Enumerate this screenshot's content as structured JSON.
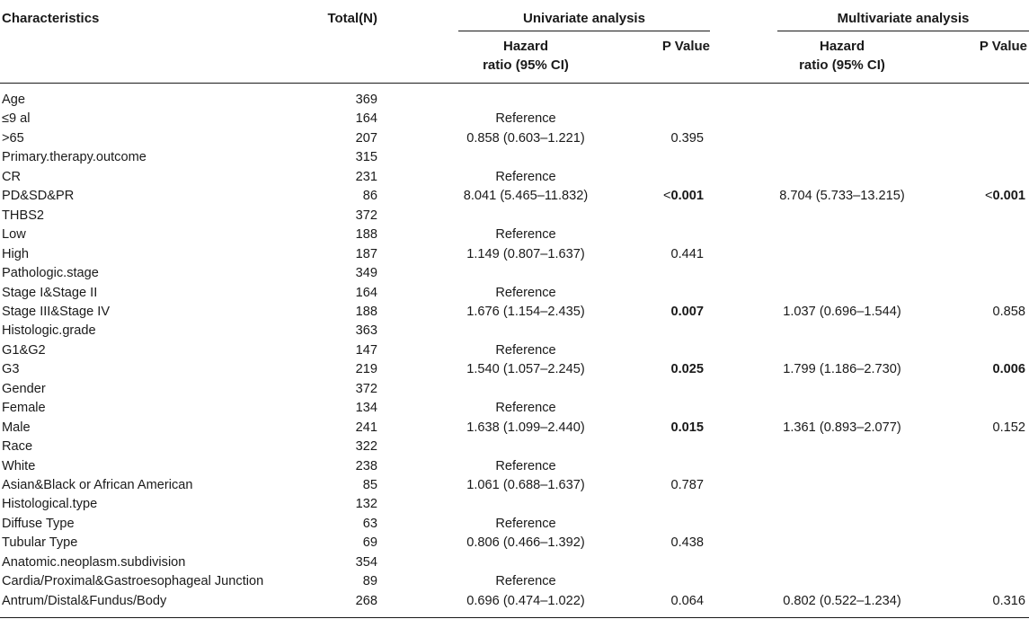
{
  "headers": {
    "characteristics": "Characteristics",
    "total": "Total(N)",
    "univariate": "Univariate analysis",
    "multivariate": "Multivariate analysis",
    "hazard_line1": "Hazard",
    "hazard_line2": "ratio (95% CI)",
    "p_value": "P Value"
  },
  "rows": [
    {
      "char": "Age",
      "total": "369",
      "uhr": "",
      "up": "",
      "up_lt": "",
      "up_bold": false,
      "mhr": "",
      "mp": "",
      "mp_lt": "",
      "mp_bold": false
    },
    {
      "char": "≤9 al",
      "total": "164",
      "uhr": "Reference",
      "up": "",
      "up_lt": "",
      "up_bold": false,
      "mhr": "",
      "mp": "",
      "mp_lt": "",
      "mp_bold": false
    },
    {
      "char": ">65",
      "total": "207",
      "uhr": "0.858 (0.603–1.221)",
      "up": "0.395",
      "up_lt": "",
      "up_bold": false,
      "mhr": "",
      "mp": "",
      "mp_lt": "",
      "mp_bold": false
    },
    {
      "char": "Primary.therapy.outcome",
      "total": "315",
      "uhr": "",
      "up": "",
      "up_lt": "",
      "up_bold": false,
      "mhr": "",
      "mp": "",
      "mp_lt": "",
      "mp_bold": false
    },
    {
      "char": "CR",
      "total": "231",
      "uhr": "Reference",
      "up": "",
      "up_lt": "",
      "up_bold": false,
      "mhr": "",
      "mp": "",
      "mp_lt": "",
      "mp_bold": false
    },
    {
      "char": "PD&SD&PR",
      "total": "86",
      "uhr": "8.041 (5.465–11.832)",
      "up": "0.001",
      "up_lt": "<",
      "up_bold": true,
      "mhr": "8.704 (5.733–13.215)",
      "mp": "0.001",
      "mp_lt": "<",
      "mp_bold": true
    },
    {
      "char": "THBS2",
      "total": "372",
      "uhr": "",
      "up": "",
      "up_lt": "",
      "up_bold": false,
      "mhr": "",
      "mp": "",
      "mp_lt": "",
      "mp_bold": false
    },
    {
      "char": "Low",
      "total": "188",
      "uhr": "Reference",
      "up": "",
      "up_lt": "",
      "up_bold": false,
      "mhr": "",
      "mp": "",
      "mp_lt": "",
      "mp_bold": false
    },
    {
      "char": "High",
      "total": "187",
      "uhr": "1.149 (0.807–1.637)",
      "up": "0.441",
      "up_lt": "",
      "up_bold": false,
      "mhr": "",
      "mp": "",
      "mp_lt": "",
      "mp_bold": false
    },
    {
      "char": "Pathologic.stage",
      "total": "349",
      "uhr": "",
      "up": "",
      "up_lt": "",
      "up_bold": false,
      "mhr": "",
      "mp": "",
      "mp_lt": "",
      "mp_bold": false
    },
    {
      "char": "Stage I&Stage II",
      "total": "164",
      "uhr": "Reference",
      "up": "",
      "up_lt": "",
      "up_bold": false,
      "mhr": "",
      "mp": "",
      "mp_lt": "",
      "mp_bold": false
    },
    {
      "char": "Stage III&Stage IV",
      "total": "188",
      "uhr": "1.676 (1.154–2.435)",
      "up": "0.007",
      "up_lt": "",
      "up_bold": true,
      "mhr": "1.037 (0.696–1.544)",
      "mp": "0.858",
      "mp_lt": "",
      "mp_bold": false
    },
    {
      "char": "Histologic.grade",
      "total": "363",
      "uhr": "",
      "up": "",
      "up_lt": "",
      "up_bold": false,
      "mhr": "",
      "mp": "",
      "mp_lt": "",
      "mp_bold": false
    },
    {
      "char": "G1&G2",
      "total": "147",
      "uhr": "Reference",
      "up": "",
      "up_lt": "",
      "up_bold": false,
      "mhr": "",
      "mp": "",
      "mp_lt": "",
      "mp_bold": false
    },
    {
      "char": "G3",
      "total": "219",
      "uhr": "1.540 (1.057–2.245)",
      "up": "0.025",
      "up_lt": "",
      "up_bold": true,
      "mhr": "1.799 (1.186–2.730)",
      "mp": "0.006",
      "mp_lt": "",
      "mp_bold": true
    },
    {
      "char": "Gender",
      "total": "372",
      "uhr": "",
      "up": "",
      "up_lt": "",
      "up_bold": false,
      "mhr": "",
      "mp": "",
      "mp_lt": "",
      "mp_bold": false
    },
    {
      "char": "Female",
      "total": "134",
      "uhr": "Reference",
      "up": "",
      "up_lt": "",
      "up_bold": false,
      "mhr": "",
      "mp": "",
      "mp_lt": "",
      "mp_bold": false
    },
    {
      "char": "Male",
      "total": "241",
      "uhr": "1.638 (1.099–2.440)",
      "up": "0.015",
      "up_lt": "",
      "up_bold": true,
      "mhr": "1.361 (0.893–2.077)",
      "mp": "0.152",
      "mp_lt": "",
      "mp_bold": false
    },
    {
      "char": "Race",
      "total": "322",
      "uhr": "",
      "up": "",
      "up_lt": "",
      "up_bold": false,
      "mhr": "",
      "mp": "",
      "mp_lt": "",
      "mp_bold": false
    },
    {
      "char": "White",
      "total": "238",
      "uhr": "Reference",
      "up": "",
      "up_lt": "",
      "up_bold": false,
      "mhr": "",
      "mp": "",
      "mp_lt": "",
      "mp_bold": false
    },
    {
      "char": "Asian&Black or African American",
      "total": "85",
      "uhr": "1.061 (0.688–1.637)",
      "up": "0.787",
      "up_lt": "",
      "up_bold": false,
      "mhr": "",
      "mp": "",
      "mp_lt": "",
      "mp_bold": false
    },
    {
      "char": "Histological.type",
      "total": "132",
      "uhr": "",
      "up": "",
      "up_lt": "",
      "up_bold": false,
      "mhr": "",
      "mp": "",
      "mp_lt": "",
      "mp_bold": false
    },
    {
      "char": "Diffuse Type",
      "total": "63",
      "uhr": "Reference",
      "up": "",
      "up_lt": "",
      "up_bold": false,
      "mhr": "",
      "mp": "",
      "mp_lt": "",
      "mp_bold": false
    },
    {
      "char": "Tubular Type",
      "total": "69",
      "uhr": "0.806 (0.466–1.392)",
      "up": "0.438",
      "up_lt": "",
      "up_bold": false,
      "mhr": "",
      "mp": "",
      "mp_lt": "",
      "mp_bold": false
    },
    {
      "char": "Anatomic.neoplasm.subdivision",
      "total": "354",
      "uhr": "",
      "up": "",
      "up_lt": "",
      "up_bold": false,
      "mhr": "",
      "mp": "",
      "mp_lt": "",
      "mp_bold": false
    },
    {
      "char": "Cardia/Proximal&Gastroesophageal Junction",
      "total": "89",
      "uhr": "Reference",
      "up": "",
      "up_lt": "",
      "up_bold": false,
      "mhr": "",
      "mp": "",
      "mp_lt": "",
      "mp_bold": false
    },
    {
      "char": "Antrum/Distal&Fundus/Body",
      "total": "268",
      "uhr": "0.696 (0.474–1.022)",
      "up": "0.064",
      "up_lt": "",
      "up_bold": false,
      "mhr": "0.802 (0.522–1.234)",
      "mp": "0.316",
      "mp_lt": "",
      "mp_bold": false
    }
  ]
}
